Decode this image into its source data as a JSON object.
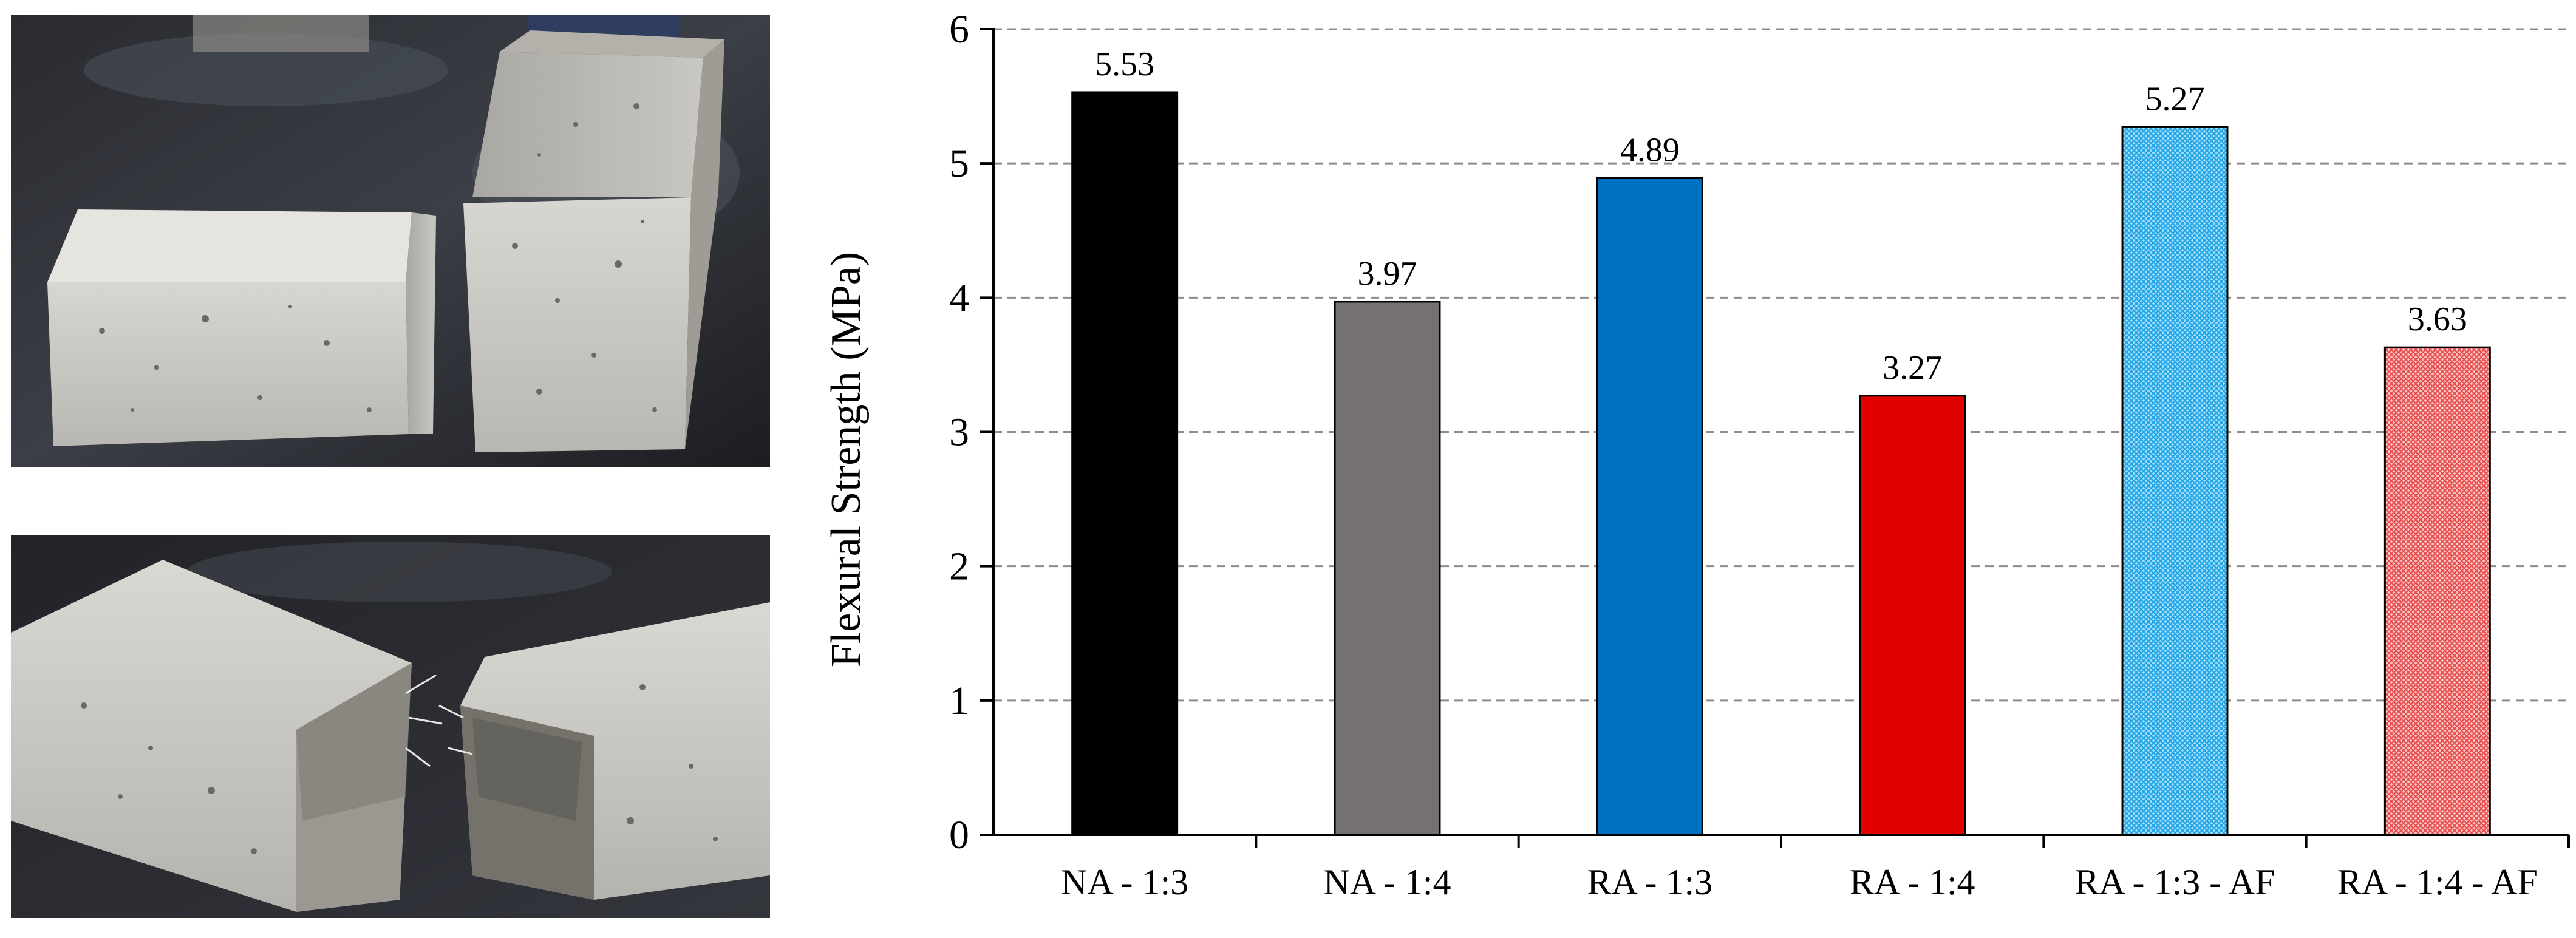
{
  "photos": [
    {
      "name": "top-photo",
      "depicts": "two fractured mortar prism halves"
    },
    {
      "name": "bottom-photo",
      "depicts": "mortar prism broken in two showing fibers"
    }
  ],
  "chart_data": {
    "type": "bar",
    "categories": [
      "NA - 1:3",
      "NA - 1:4",
      "RA - 1:3",
      "RA - 1:4",
      "RA - 1:3 - AF",
      "RA - 1:4 - AF"
    ],
    "values": [
      5.53,
      3.97,
      4.89,
      3.27,
      5.27,
      3.63
    ],
    "value_labels": [
      "5.53",
      "3.97",
      "4.89",
      "3.27",
      "5.27",
      "3.63"
    ],
    "bar_colors": [
      "#000000",
      "#767171",
      "#0070c0",
      "#e00000",
      "#33b5f0",
      "#f07070"
    ],
    "bar_fill": [
      "solid",
      "solid",
      "solid",
      "solid",
      "hatched",
      "hatched"
    ],
    "ylabel": "Flexural Strength (MPa)",
    "xlabel": "",
    "ylim": [
      0,
      6
    ],
    "yticks": [
      0,
      1,
      2,
      3,
      4,
      5,
      6
    ],
    "grid": "horizontal dashed",
    "legend": "none"
  }
}
